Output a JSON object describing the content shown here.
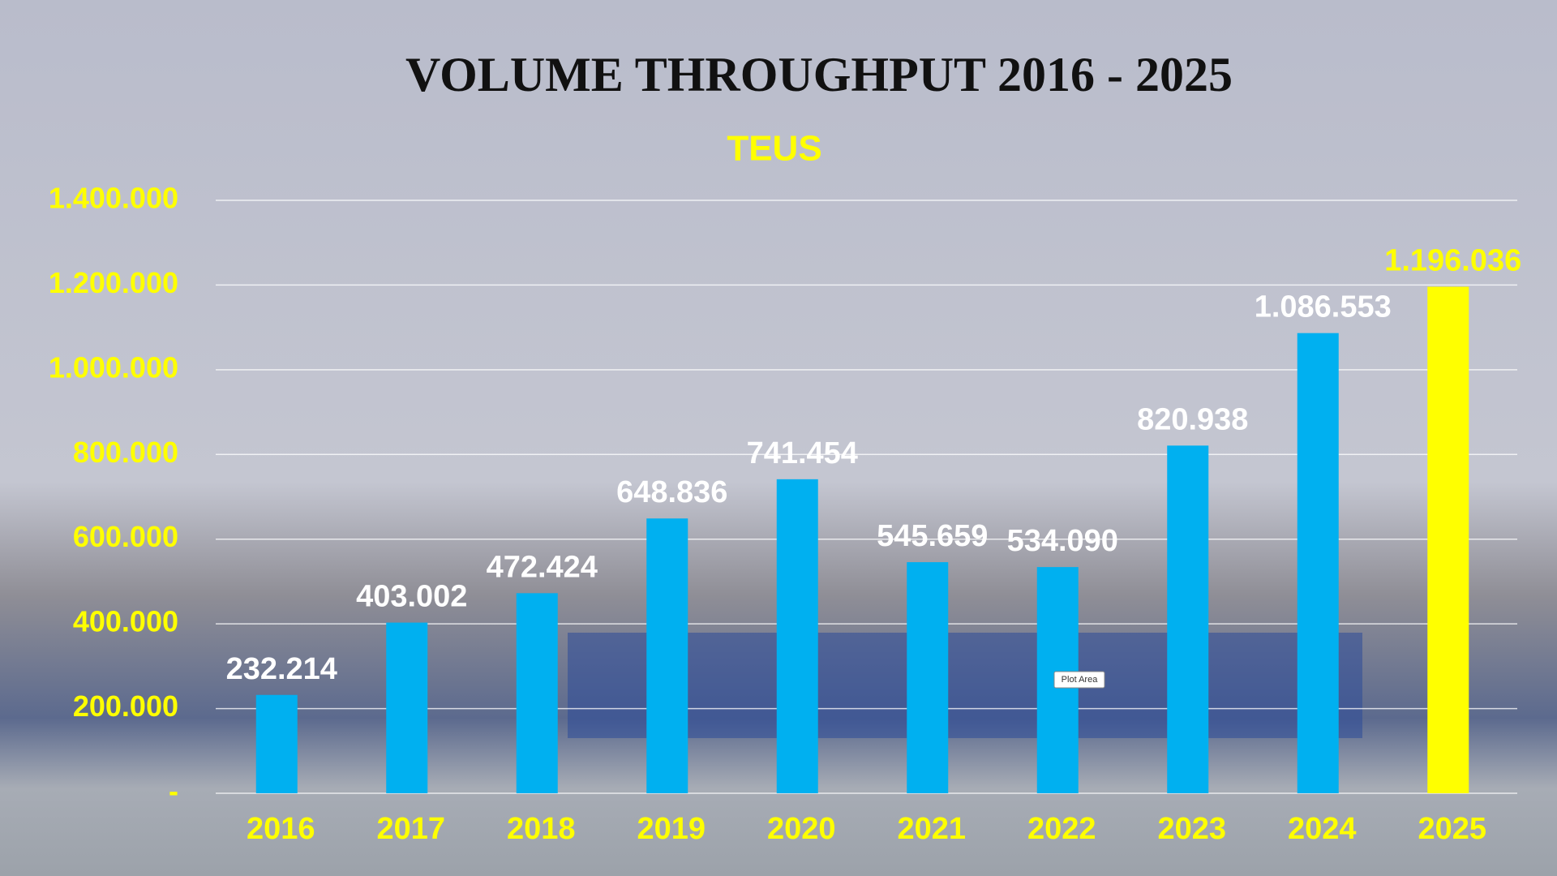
{
  "chart_data": {
    "type": "bar",
    "title": "VOLUME THROUGHPUT 2016 - 2025",
    "subtitle": "TEUS",
    "categories": [
      "2016",
      "2017",
      "2018",
      "2019",
      "2020",
      "2021",
      "2022",
      "2023",
      "2024",
      "2025"
    ],
    "values": [
      232214,
      403002,
      472424,
      648836,
      741454,
      545659,
      534090,
      820938,
      1086553,
      1196036
    ],
    "value_labels": [
      "232.214",
      "403.002",
      "472.424",
      "648.836",
      "741.454",
      "545.659",
      "534.090",
      "820.938",
      "1.086.553",
      "1.196.036"
    ],
    "colors": [
      "#00b0f0",
      "#00b0f0",
      "#00b0f0",
      "#00b0f0",
      "#00b0f0",
      "#00b0f0",
      "#00b0f0",
      "#00b0f0",
      "#00b0f0",
      "#ffff00"
    ],
    "value_label_colors": [
      "#ffffff",
      "#ffffff",
      "#ffffff",
      "#ffffff",
      "#ffffff",
      "#ffffff",
      "#ffffff",
      "#ffffff",
      "#ffffff",
      "#ffff00"
    ],
    "ylim": [
      0,
      1400000
    ],
    "yticks": [
      {
        "value": 0,
        "label": "-"
      },
      {
        "value": 200000,
        "label": "200.000"
      },
      {
        "value": 400000,
        "label": "400.000"
      },
      {
        "value": 600000,
        "label": "600.000"
      },
      {
        "value": 800000,
        "label": "800.000"
      },
      {
        "value": 1000000,
        "label": "1.000.000"
      },
      {
        "value": 1200000,
        "label": "1.200.000"
      },
      {
        "value": 1400000,
        "label": "1.400.000"
      }
    ],
    "grid": true,
    "tooltip": "Plot Area"
  }
}
